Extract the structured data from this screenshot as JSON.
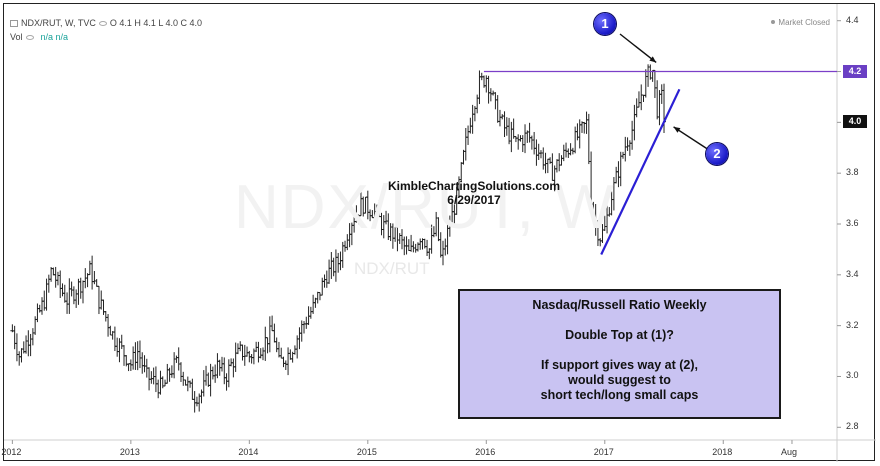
{
  "header": {
    "symbol": "NDX/RUT, W, TVC",
    "ohlc": "O 4.1 H 4.1 L 4.0 C 4.0",
    "vol_label": "Vol",
    "vol_value": "n/a n/a"
  },
  "status": {
    "market": "Market Closed"
  },
  "watermark": {
    "large": "NDX/RUT, W",
    "small": "NDX/RUT"
  },
  "brand": {
    "site": "KimbleChartingSolutions.com",
    "date": "6/29/2017"
  },
  "callouts": [
    "1",
    "2"
  ],
  "info_box": {
    "line1": "Nasdaq/Russell Ratio Weekly",
    "line2": "Double Top at (1)?",
    "line3": "If support gives way at (2),",
    "line4": "would suggest to",
    "line5": "short tech/long small caps"
  },
  "price_badges": {
    "resistance": "4.2",
    "last": "4.0",
    "resistance_color": "#6a3fc4",
    "last_color": "#111111"
  },
  "colors": {
    "resistance_line": "#7b3fc8",
    "trendline": "#2b1fd4",
    "bars": "#222222"
  },
  "chart_data": {
    "type": "ohlc",
    "title": "NDX/RUT, W, TVC",
    "interval": "weekly",
    "y_ticks": [
      "4.4",
      "4.2",
      "4.0",
      "3.8",
      "3.6",
      "3.4",
      "3.2",
      "3.0",
      "2.8"
    ],
    "ylim": [
      2.75,
      4.45
    ],
    "x_ticks": [
      "2012",
      "2013",
      "2014",
      "2015",
      "2016",
      "2017",
      "2018",
      "Aug"
    ],
    "x_tick_times": [
      2012.0,
      2013.0,
      2014.0,
      2015.0,
      2016.0,
      2017.0,
      2018.0,
      2018.58
    ],
    "xlim": [
      2011.98,
      2018.96
    ],
    "close_path": [
      [
        2012.0,
        3.18
      ],
      [
        2012.06,
        3.08
      ],
      [
        2012.13,
        3.15
      ],
      [
        2012.2,
        3.22
      ],
      [
        2012.27,
        3.3
      ],
      [
        2012.33,
        3.42
      ],
      [
        2012.4,
        3.35
      ],
      [
        2012.46,
        3.3
      ],
      [
        2012.53,
        3.34
      ],
      [
        2012.6,
        3.38
      ],
      [
        2012.66,
        3.42
      ],
      [
        2012.73,
        3.3
      ],
      [
        2012.8,
        3.22
      ],
      [
        2012.86,
        3.15
      ],
      [
        2012.93,
        3.1
      ],
      [
        2013.0,
        3.05
      ],
      [
        2013.06,
        3.1
      ],
      [
        2013.13,
        3.0
      ],
      [
        2013.2,
        2.98
      ],
      [
        2013.27,
        2.95
      ],
      [
        2013.33,
        3.02
      ],
      [
        2013.4,
        3.06
      ],
      [
        2013.46,
        2.98
      ],
      [
        2013.53,
        2.92
      ],
      [
        2013.6,
        2.94
      ],
      [
        2013.66,
        3.0
      ],
      [
        2013.73,
        3.04
      ],
      [
        2013.8,
        3.0
      ],
      [
        2013.86,
        3.06
      ],
      [
        2013.93,
        3.1
      ],
      [
        2014.0,
        3.08
      ],
      [
        2014.1,
        3.12
      ],
      [
        2014.2,
        3.18
      ],
      [
        2014.25,
        3.05
      ],
      [
        2014.35,
        3.1
      ],
      [
        2014.45,
        3.2
      ],
      [
        2014.55,
        3.28
      ],
      [
        2014.65,
        3.4
      ],
      [
        2014.75,
        3.45
      ],
      [
        2014.85,
        3.6
      ],
      [
        2014.95,
        3.68
      ],
      [
        2015.05,
        3.65
      ],
      [
        2015.15,
        3.58
      ],
      [
        2015.25,
        3.55
      ],
      [
        2015.35,
        3.48
      ],
      [
        2015.45,
        3.56
      ],
      [
        2015.52,
        3.5
      ],
      [
        2015.58,
        3.6
      ],
      [
        2015.62,
        3.45
      ],
      [
        2015.68,
        3.58
      ],
      [
        2015.75,
        3.7
      ],
      [
        2015.82,
        3.9
      ],
      [
        2015.88,
        4.05
      ],
      [
        2015.94,
        4.15
      ],
      [
        2016.0,
        4.18
      ],
      [
        2016.04,
        4.12
      ],
      [
        2016.08,
        4.05
      ],
      [
        2016.15,
        3.98
      ],
      [
        2016.25,
        3.92
      ],
      [
        2016.35,
        3.95
      ],
      [
        2016.45,
        3.88
      ],
      [
        2016.55,
        3.8
      ],
      [
        2016.62,
        3.85
      ],
      [
        2016.7,
        3.9
      ],
      [
        2016.78,
        3.95
      ],
      [
        2016.85,
        4.0
      ],
      [
        2016.88,
        3.72
      ],
      [
        2016.92,
        3.6
      ],
      [
        2016.96,
        3.55
      ],
      [
        2017.0,
        3.58
      ],
      [
        2017.05,
        3.7
      ],
      [
        2017.12,
        3.82
      ],
      [
        2017.18,
        3.92
      ],
      [
        2017.24,
        3.98
      ],
      [
        2017.3,
        4.1
      ],
      [
        2017.36,
        4.18
      ],
      [
        2017.4,
        4.22
      ],
      [
        2017.44,
        4.05
      ],
      [
        2017.48,
        4.1
      ],
      [
        2017.5,
        4.02
      ]
    ],
    "resistance_level": 4.2,
    "support_trendline": [
      [
        2016.97,
        3.48
      ],
      [
        2017.63,
        4.13
      ]
    ],
    "annotations": [
      {
        "label": "1",
        "point": [
          2017.4,
          4.22
        ]
      },
      {
        "label": "2",
        "point": [
          2017.53,
          3.99
        ]
      }
    ]
  }
}
